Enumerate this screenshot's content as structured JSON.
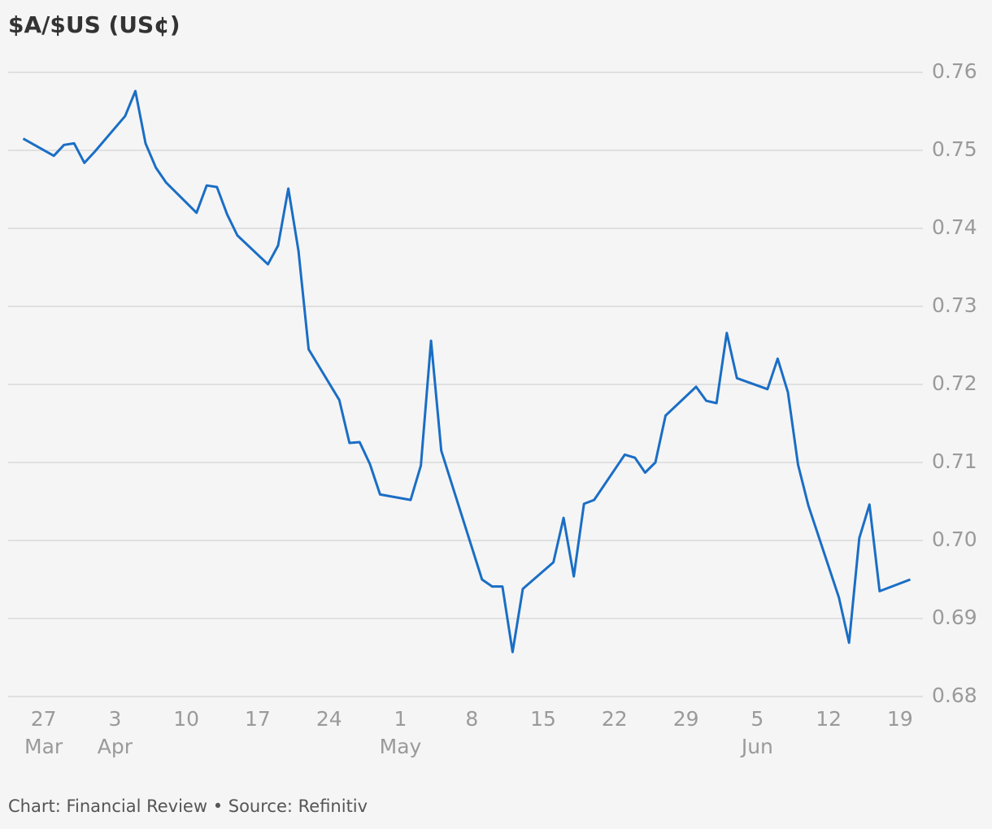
{
  "chart_data": {
    "type": "line",
    "title": "$A/$US (US¢)",
    "source": "Chart: Financial Review • Source: Refinitiv",
    "x": [
      "03-25",
      "03-28",
      "03-29",
      "03-30",
      "03-31",
      "04-01",
      "04-04",
      "04-05",
      "04-06",
      "04-07",
      "04-08",
      "04-11",
      "04-12",
      "04-13",
      "04-14",
      "04-15",
      "04-18",
      "04-19",
      "04-20",
      "04-21",
      "04-22",
      "04-25",
      "04-26",
      "04-27",
      "04-28",
      "04-29",
      "05-02",
      "05-03",
      "05-04",
      "05-05",
      "05-09",
      "05-10",
      "05-11",
      "05-12",
      "05-13",
      "05-16",
      "05-17",
      "05-18",
      "05-19",
      "05-20",
      "05-23",
      "05-24",
      "05-25",
      "05-26",
      "05-27",
      "05-30",
      "05-31",
      "06-01",
      "06-02",
      "06-03",
      "06-06",
      "06-07",
      "06-08",
      "06-09",
      "06-10",
      "06-13",
      "06-14",
      "06-15",
      "06-16",
      "06-17",
      "06-20"
    ],
    "series": [
      {
        "name": "$A/$US",
        "color": "#1a6ec5",
        "values": [
          0.7515,
          0.7493,
          0.7507,
          0.7509,
          0.7484,
          0.7498,
          0.7544,
          0.7576,
          0.7509,
          0.7478,
          0.7459,
          0.742,
          0.7455,
          0.7453,
          0.7418,
          0.7391,
          0.7354,
          0.7378,
          0.7451,
          0.7371,
          0.7245,
          0.718,
          0.7125,
          0.7126,
          0.7098,
          0.7059,
          0.7052,
          0.7096,
          0.7256,
          0.7115,
          0.695,
          0.6941,
          0.6941,
          0.6857,
          0.6938,
          0.6972,
          0.7029,
          0.6954,
          0.7047,
          0.7052,
          0.711,
          0.7106,
          0.7087,
          0.71,
          0.716,
          0.7197,
          0.7179,
          0.7176,
          0.7266,
          0.7208,
          0.7194,
          0.7233,
          0.719,
          0.7097,
          0.7045,
          0.6927,
          0.6869,
          0.7003,
          0.7046,
          0.6935,
          0.695
        ]
      }
    ],
    "xlim": [
      "03-24",
      "06-21"
    ],
    "xticks": [
      {
        "value": "03-27",
        "label": "27",
        "month": "Mar"
      },
      {
        "value": "04-03",
        "label": "3",
        "month": "Apr"
      },
      {
        "value": "04-10",
        "label": "10"
      },
      {
        "value": "04-17",
        "label": "17"
      },
      {
        "value": "04-24",
        "label": "24"
      },
      {
        "value": "05-01",
        "label": "1",
        "month": "May"
      },
      {
        "value": "05-08",
        "label": "8"
      },
      {
        "value": "05-15",
        "label": "15"
      },
      {
        "value": "05-22",
        "label": "22"
      },
      {
        "value": "05-29",
        "label": "29"
      },
      {
        "value": "06-05",
        "label": "5",
        "month": "Jun"
      },
      {
        "value": "06-12",
        "label": "12"
      },
      {
        "value": "06-19",
        "label": "19"
      }
    ],
    "ylim": [
      0.68,
      0.76
    ],
    "yticks": [
      {
        "value": 0.68,
        "label": "0.68"
      },
      {
        "value": 0.69,
        "label": "0.69"
      },
      {
        "value": 0.7,
        "label": "0.70"
      },
      {
        "value": 0.71,
        "label": "0.71"
      },
      {
        "value": 0.72,
        "label": "0.72"
      },
      {
        "value": 0.73,
        "label": "0.73"
      },
      {
        "value": 0.74,
        "label": "0.74"
      },
      {
        "value": 0.75,
        "label": "0.75"
      },
      {
        "value": 0.76,
        "label": "0.76"
      }
    ],
    "grid": true
  }
}
